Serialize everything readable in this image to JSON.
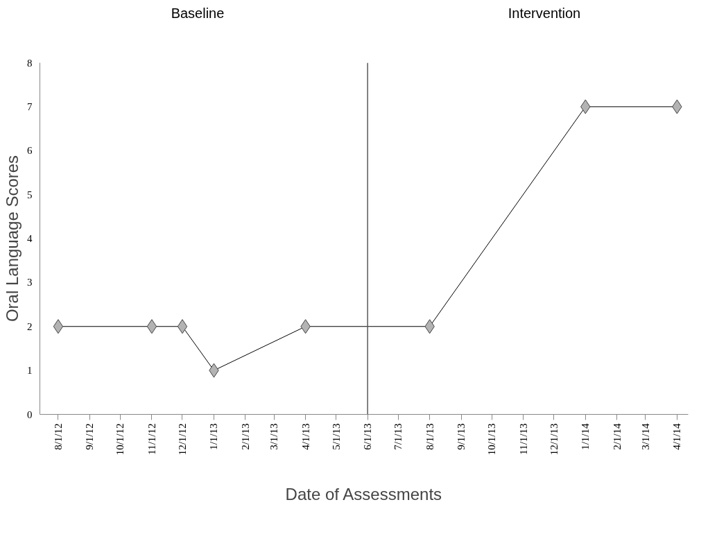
{
  "chart_data": {
    "type": "line",
    "xlabel": "Date of Assessments",
    "ylabel": "Oral Language Scores",
    "annotations": [
      "Baseline",
      "Intervention"
    ],
    "x": [
      "2012-08-01",
      "2012-11-01",
      "2012-12-01",
      "2013-01-01",
      "2013-04-01",
      "2013-08-01",
      "2014-01-01",
      "2014-04-01"
    ],
    "series": [
      {
        "color": "#b3b3b3",
        "values": [
          2,
          2,
          2,
          1,
          2,
          2,
          7,
          7
        ]
      }
    ],
    "xlim": [
      "2012-07-14",
      "2014-04-12"
    ],
    "xticks": [
      {
        "value": "2012-08-01",
        "label": "8/1/12"
      },
      {
        "value": "2012-09-01",
        "label": "9/1/12"
      },
      {
        "value": "2012-10-01",
        "label": "10/1/12"
      },
      {
        "value": "2012-11-01",
        "label": "11/1/12"
      },
      {
        "value": "2012-12-01",
        "label": "12/1/12"
      },
      {
        "value": "2013-01-01",
        "label": "1/1/13"
      },
      {
        "value": "2013-02-01",
        "label": "2/1/13"
      },
      {
        "value": "2013-03-01",
        "label": "3/1/13"
      },
      {
        "value": "2013-04-01",
        "label": "4/1/13"
      },
      {
        "value": "2013-05-01",
        "label": "5/1/13"
      },
      {
        "value": "2013-06-01",
        "label": "6/1/13"
      },
      {
        "value": "2013-07-01",
        "label": "7/1/13"
      },
      {
        "value": "2013-08-01",
        "label": "8/1/13"
      },
      {
        "value": "2013-09-01",
        "label": "9/1/13"
      },
      {
        "value": "2013-10-01",
        "label": "10/1/13"
      },
      {
        "value": "2013-11-01",
        "label": "11/1/13"
      },
      {
        "value": "2013-12-01",
        "label": "12/1/13"
      },
      {
        "value": "2014-01-01",
        "label": "1/1/14"
      },
      {
        "value": "2014-02-01",
        "label": "2/1/14"
      },
      {
        "value": "2014-03-01",
        "label": "3/1/14"
      },
      {
        "value": "2014-04-01",
        "label": "4/1/14"
      }
    ],
    "ylim": [
      0,
      8
    ],
    "yticks": [
      0,
      1,
      2,
      3,
      4,
      5,
      6,
      7,
      8
    ],
    "ref_lines": [
      {
        "axis": "x",
        "value": "2013-06-01",
        "color": "#595959"
      }
    ],
    "grid": false,
    "marker": "diamond",
    "line_style": "solid"
  }
}
